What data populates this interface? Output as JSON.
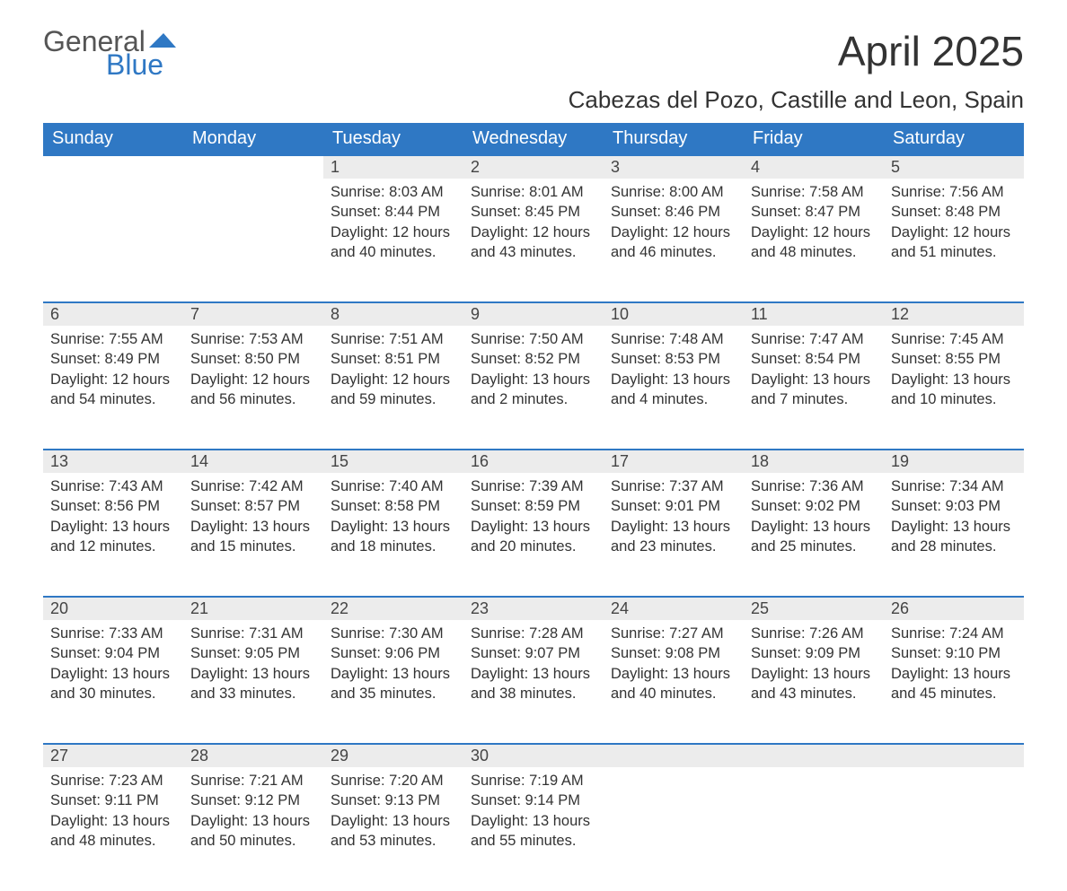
{
  "logo": {
    "general": "General",
    "blue": "Blue"
  },
  "title": "April 2025",
  "location": "Cabezas del Pozo, Castille and Leon, Spain",
  "colors": {
    "header_bg": "#2f78c4",
    "header_text": "#ffffff",
    "daynum_bg": "#ececec",
    "row_border": "#2f78c4",
    "body_text": "#333333",
    "logo_blue": "#2f78c4",
    "page_bg": "#ffffff"
  },
  "layout": {
    "columns": 7,
    "week_rows": 5,
    "font_family": "Arial",
    "title_fontsize_pt": 34,
    "location_fontsize_pt": 20,
    "header_fontsize_pt": 15,
    "cell_fontsize_pt": 12
  },
  "weekdays": [
    "Sunday",
    "Monday",
    "Tuesday",
    "Wednesday",
    "Thursday",
    "Friday",
    "Saturday"
  ],
  "weeks": [
    [
      null,
      null,
      {
        "n": "1",
        "sr": "Sunrise: 8:03 AM",
        "ss": "Sunset: 8:44 PM",
        "dl": "Daylight: 12 hours and 40 minutes."
      },
      {
        "n": "2",
        "sr": "Sunrise: 8:01 AM",
        "ss": "Sunset: 8:45 PM",
        "dl": "Daylight: 12 hours and 43 minutes."
      },
      {
        "n": "3",
        "sr": "Sunrise: 8:00 AM",
        "ss": "Sunset: 8:46 PM",
        "dl": "Daylight: 12 hours and 46 minutes."
      },
      {
        "n": "4",
        "sr": "Sunrise: 7:58 AM",
        "ss": "Sunset: 8:47 PM",
        "dl": "Daylight: 12 hours and 48 minutes."
      },
      {
        "n": "5",
        "sr": "Sunrise: 7:56 AM",
        "ss": "Sunset: 8:48 PM",
        "dl": "Daylight: 12 hours and 51 minutes."
      }
    ],
    [
      {
        "n": "6",
        "sr": "Sunrise: 7:55 AM",
        "ss": "Sunset: 8:49 PM",
        "dl": "Daylight: 12 hours and 54 minutes."
      },
      {
        "n": "7",
        "sr": "Sunrise: 7:53 AM",
        "ss": "Sunset: 8:50 PM",
        "dl": "Daylight: 12 hours and 56 minutes."
      },
      {
        "n": "8",
        "sr": "Sunrise: 7:51 AM",
        "ss": "Sunset: 8:51 PM",
        "dl": "Daylight: 12 hours and 59 minutes."
      },
      {
        "n": "9",
        "sr": "Sunrise: 7:50 AM",
        "ss": "Sunset: 8:52 PM",
        "dl": "Daylight: 13 hours and 2 minutes."
      },
      {
        "n": "10",
        "sr": "Sunrise: 7:48 AM",
        "ss": "Sunset: 8:53 PM",
        "dl": "Daylight: 13 hours and 4 minutes."
      },
      {
        "n": "11",
        "sr": "Sunrise: 7:47 AM",
        "ss": "Sunset: 8:54 PM",
        "dl": "Daylight: 13 hours and 7 minutes."
      },
      {
        "n": "12",
        "sr": "Sunrise: 7:45 AM",
        "ss": "Sunset: 8:55 PM",
        "dl": "Daylight: 13 hours and 10 minutes."
      }
    ],
    [
      {
        "n": "13",
        "sr": "Sunrise: 7:43 AM",
        "ss": "Sunset: 8:56 PM",
        "dl": "Daylight: 13 hours and 12 minutes."
      },
      {
        "n": "14",
        "sr": "Sunrise: 7:42 AM",
        "ss": "Sunset: 8:57 PM",
        "dl": "Daylight: 13 hours and 15 minutes."
      },
      {
        "n": "15",
        "sr": "Sunrise: 7:40 AM",
        "ss": "Sunset: 8:58 PM",
        "dl": "Daylight: 13 hours and 18 minutes."
      },
      {
        "n": "16",
        "sr": "Sunrise: 7:39 AM",
        "ss": "Sunset: 8:59 PM",
        "dl": "Daylight: 13 hours and 20 minutes."
      },
      {
        "n": "17",
        "sr": "Sunrise: 7:37 AM",
        "ss": "Sunset: 9:01 PM",
        "dl": "Daylight: 13 hours and 23 minutes."
      },
      {
        "n": "18",
        "sr": "Sunrise: 7:36 AM",
        "ss": "Sunset: 9:02 PM",
        "dl": "Daylight: 13 hours and 25 minutes."
      },
      {
        "n": "19",
        "sr": "Sunrise: 7:34 AM",
        "ss": "Sunset: 9:03 PM",
        "dl": "Daylight: 13 hours and 28 minutes."
      }
    ],
    [
      {
        "n": "20",
        "sr": "Sunrise: 7:33 AM",
        "ss": "Sunset: 9:04 PM",
        "dl": "Daylight: 13 hours and 30 minutes."
      },
      {
        "n": "21",
        "sr": "Sunrise: 7:31 AM",
        "ss": "Sunset: 9:05 PM",
        "dl": "Daylight: 13 hours and 33 minutes."
      },
      {
        "n": "22",
        "sr": "Sunrise: 7:30 AM",
        "ss": "Sunset: 9:06 PM",
        "dl": "Daylight: 13 hours and 35 minutes."
      },
      {
        "n": "23",
        "sr": "Sunrise: 7:28 AM",
        "ss": "Sunset: 9:07 PM",
        "dl": "Daylight: 13 hours and 38 minutes."
      },
      {
        "n": "24",
        "sr": "Sunrise: 7:27 AM",
        "ss": "Sunset: 9:08 PM",
        "dl": "Daylight: 13 hours and 40 minutes."
      },
      {
        "n": "25",
        "sr": "Sunrise: 7:26 AM",
        "ss": "Sunset: 9:09 PM",
        "dl": "Daylight: 13 hours and 43 minutes."
      },
      {
        "n": "26",
        "sr": "Sunrise: 7:24 AM",
        "ss": "Sunset: 9:10 PM",
        "dl": "Daylight: 13 hours and 45 minutes."
      }
    ],
    [
      {
        "n": "27",
        "sr": "Sunrise: 7:23 AM",
        "ss": "Sunset: 9:11 PM",
        "dl": "Daylight: 13 hours and 48 minutes."
      },
      {
        "n": "28",
        "sr": "Sunrise: 7:21 AM",
        "ss": "Sunset: 9:12 PM",
        "dl": "Daylight: 13 hours and 50 minutes."
      },
      {
        "n": "29",
        "sr": "Sunrise: 7:20 AM",
        "ss": "Sunset: 9:13 PM",
        "dl": "Daylight: 13 hours and 53 minutes."
      },
      {
        "n": "30",
        "sr": "Sunrise: 7:19 AM",
        "ss": "Sunset: 9:14 PM",
        "dl": "Daylight: 13 hours and 55 minutes."
      },
      null,
      null,
      null
    ]
  ]
}
